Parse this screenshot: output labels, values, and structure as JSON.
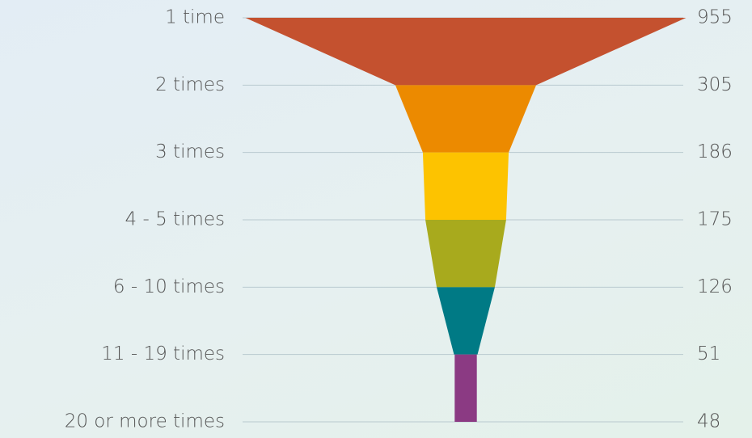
{
  "chart_data": {
    "type": "funnel",
    "categories": [
      "1 time",
      "2 times",
      "3 times",
      "4 - 5 times",
      "6 - 10 times",
      "11 - 19 times",
      "20 or more times"
    ],
    "values": [
      955,
      305,
      186,
      175,
      126,
      51,
      48
    ],
    "colors": [
      "#c4512f",
      "#ec8a00",
      "#fdc300",
      "#a8aa1d",
      "#007a85",
      "#8b3a83"
    ],
    "grid": true
  }
}
